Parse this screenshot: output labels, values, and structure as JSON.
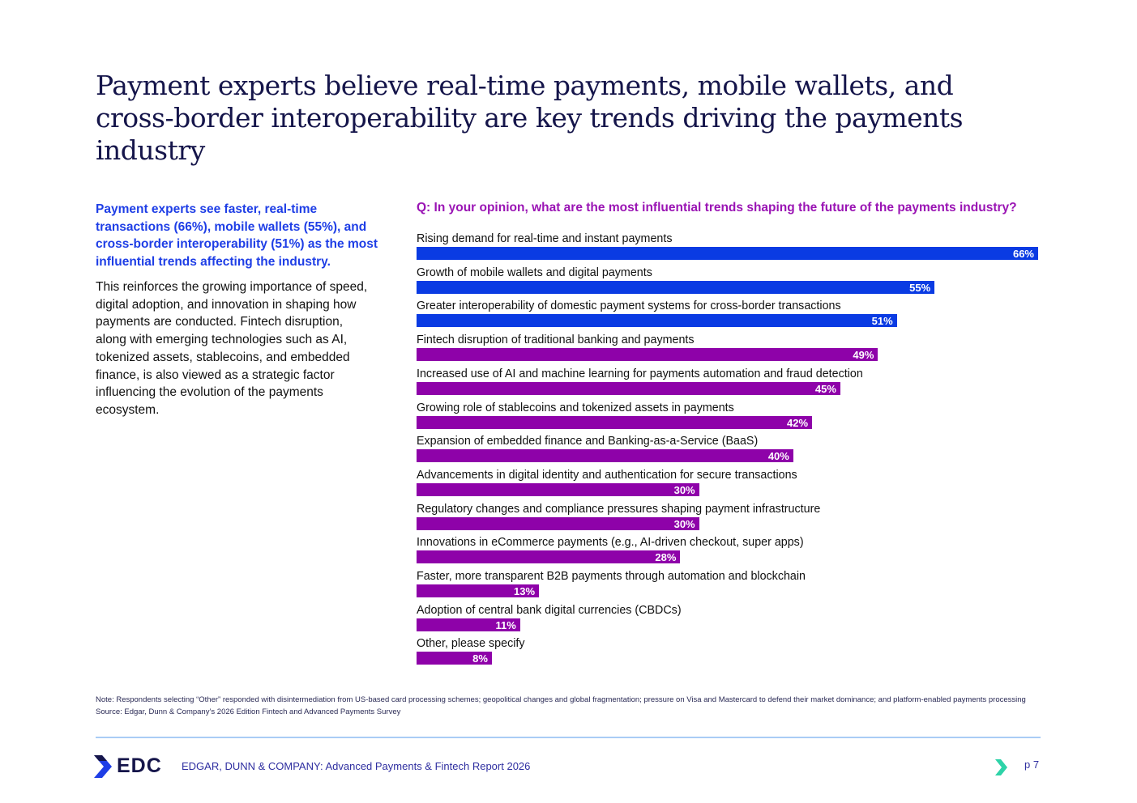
{
  "title": "Payment experts believe real-time payments, mobile wallets, and cross-border interoperability are key trends driving the payments industry",
  "lead": "Payment experts see faster, real-time transactions (66%), mobile wallets (55%), and cross-border interoperability (51%) as the most influential trends affecting the industry.",
  "body": "This reinforces the growing importance of speed, digital adoption, and innovation in shaping how payments are conducted. Fintech disruption, along with emerging technologies such as AI, tokenized assets, stablecoins, and embedded finance, is also viewed as a strategic factor influencing the evolution of the payments ecosystem.",
  "chart_data": {
    "type": "bar",
    "orientation": "horizontal",
    "title": "Q: In your opinion, what are the most influential trends shaping the future of the payments industry?",
    "unit": "%",
    "categories": [
      "Rising demand for real-time and instant payments",
      "Growth of mobile wallets and digital payments",
      "Greater interoperability of domestic payment systems for cross-border transactions",
      "Fintech disruption of traditional banking and payments",
      "Increased use of AI and machine learning for payments automation and fraud detection",
      "Growing role of stablecoins and tokenized assets in payments",
      "Expansion of embedded finance and Banking-as-a-Service (BaaS)",
      "Advancements in digital identity and authentication for secure transactions",
      "Regulatory changes and compliance pressures shaping payment infrastructure",
      "Innovations in eCommerce payments (e.g., AI-driven checkout, super apps)",
      "Faster, more transparent B2B payments through automation and blockchain",
      "Adoption of central bank digital currencies (CBDCs)",
      "Other, please specify"
    ],
    "values": [
      66,
      55,
      51,
      49,
      45,
      42,
      40,
      30,
      30,
      28,
      13,
      11,
      8
    ],
    "labels": [
      "66%",
      "55%",
      "51%",
      "49%",
      "45%",
      "42%",
      "40%",
      "30%",
      "30%",
      "28%",
      "13%",
      "11%",
      "8%"
    ],
    "highlight_count": 3,
    "colors": {
      "highlight": "#0a3be3",
      "default": "#8e02a9"
    }
  },
  "note": "Note: Respondents selecting “Other” responded with disintermediation from US-based card processing schemes; geopolitical changes and global fragmentation; pressure on Visa and Mastercard to defend their market dominance; and platform-enabled payments processing",
  "source": "Source: Edgar, Dunn & Company’s 2026 Edition Fintech and Advanced Payments Survey",
  "footer": {
    "logo": "EDC",
    "text": "EDGAR, DUNN & COMPANY: Advanced Payments & Fintech Report 2026",
    "page": "p 7"
  }
}
